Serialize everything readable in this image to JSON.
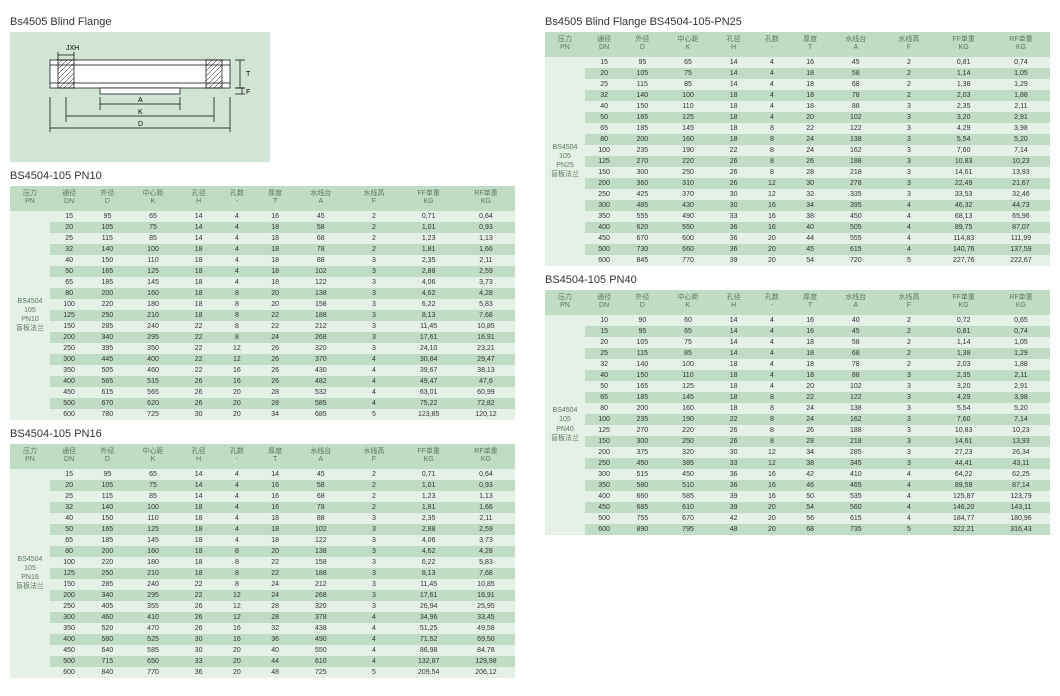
{
  "colors": {
    "header_bg": "#c0dcc4",
    "row_odd": "#e5f0e6",
    "row_even": "#c0dcc4",
    "diagram_bg": "#d2e5d5",
    "text": "#333333",
    "header_text": "#5a7a5f"
  },
  "left_title": "Bs4505 Blind Flange",
  "right_title": "Bs4505 Blind Flange BS4504-105-PN25",
  "columns": [
    {
      "h1": "压力",
      "h2": "PN"
    },
    {
      "h1": "通径",
      "h2": "DN"
    },
    {
      "h1": "外径",
      "h2": "D"
    },
    {
      "h1": "中心距",
      "h2": "K"
    },
    {
      "h1": "孔径",
      "h2": "H"
    },
    {
      "h1": "孔数",
      "h2": "-"
    },
    {
      "h1": "厚度",
      "h2": "T"
    },
    {
      "h1": "水线台",
      "h2": "A"
    },
    {
      "h1": "水线高",
      "h2": "F"
    },
    {
      "h1": "FF单重",
      "h2": "KG"
    },
    {
      "h1": "RF单重",
      "h2": "KG"
    }
  ],
  "tables": [
    {
      "title": "BS4504-105  PN10",
      "pn_label": "BS4504 105 PN10 盲板法兰",
      "rows": [
        [
          15,
          95,
          65,
          14,
          4,
          16,
          45,
          2,
          "0,71",
          "0,64"
        ],
        [
          20,
          105,
          75,
          14,
          4,
          18,
          58,
          2,
          "1,01",
          "0,93"
        ],
        [
          25,
          115,
          85,
          14,
          4,
          18,
          68,
          2,
          "1,23",
          "1,13"
        ],
        [
          32,
          140,
          100,
          18,
          4,
          18,
          78,
          2,
          "1,81",
          "1,66"
        ],
        [
          40,
          150,
          110,
          18,
          4,
          18,
          88,
          3,
          "2,35",
          "2,11"
        ],
        [
          50,
          165,
          125,
          18,
          4,
          18,
          102,
          3,
          "2,88",
          "2,59"
        ],
        [
          65,
          185,
          145,
          18,
          4,
          18,
          122,
          3,
          "4,06",
          "3,73"
        ],
        [
          80,
          200,
          160,
          18,
          8,
          20,
          138,
          3,
          "4,62",
          "4,28"
        ],
        [
          100,
          220,
          180,
          18,
          8,
          20,
          158,
          3,
          "6,22",
          "5,83"
        ],
        [
          125,
          250,
          210,
          18,
          8,
          22,
          188,
          3,
          "8,13",
          "7,68"
        ],
        [
          150,
          285,
          240,
          22,
          8,
          22,
          212,
          3,
          "11,45",
          "10,85"
        ],
        [
          200,
          340,
          295,
          22,
          8,
          24,
          268,
          3,
          "17,61",
          "16,91"
        ],
        [
          250,
          395,
          350,
          22,
          12,
          26,
          320,
          3,
          "24,10",
          "23,21"
        ],
        [
          300,
          445,
          400,
          22,
          12,
          26,
          370,
          4,
          "30,84",
          "29,47"
        ],
        [
          350,
          505,
          460,
          22,
          16,
          26,
          430,
          4,
          "39,67",
          "38,13"
        ],
        [
          400,
          565,
          515,
          26,
          16,
          26,
          482,
          4,
          "49,47",
          "47,6"
        ],
        [
          450,
          615,
          565,
          26,
          20,
          28,
          532,
          4,
          "63,01",
          "60,99"
        ],
        [
          500,
          670,
          620,
          26,
          20,
          28,
          585,
          4,
          "75,22",
          "72,82"
        ],
        [
          600,
          780,
          725,
          30,
          20,
          34,
          685,
          5,
          "123,85",
          "120,12"
        ]
      ]
    },
    {
      "title": "BS4504-105  PN16",
      "pn_label": "BS4504 105 PN16 盲板法兰",
      "rows": [
        [
          15,
          95,
          65,
          14,
          4,
          14,
          45,
          2,
          "0,71",
          "0,64"
        ],
        [
          20,
          105,
          75,
          14,
          4,
          16,
          58,
          2,
          "1,01",
          "0,93"
        ],
        [
          25,
          115,
          85,
          14,
          4,
          16,
          68,
          2,
          "1,23",
          "1,13"
        ],
        [
          32,
          140,
          100,
          18,
          4,
          16,
          78,
          2,
          "1,81",
          "1,66"
        ],
        [
          40,
          150,
          110,
          18,
          4,
          18,
          88,
          3,
          "2,35",
          "2,11"
        ],
        [
          50,
          165,
          125,
          18,
          4,
          18,
          102,
          3,
          "2,88",
          "2,59"
        ],
        [
          65,
          185,
          145,
          18,
          4,
          18,
          122,
          3,
          "4,06",
          "3,73"
        ],
        [
          80,
          200,
          160,
          18,
          8,
          20,
          138,
          3,
          "4,62",
          "4,28"
        ],
        [
          100,
          220,
          180,
          18,
          8,
          22,
          158,
          3,
          "6,22",
          "5,83"
        ],
        [
          125,
          250,
          210,
          18,
          8,
          22,
          188,
          3,
          "8,13",
          "7,68"
        ],
        [
          150,
          285,
          240,
          22,
          8,
          24,
          212,
          3,
          "11,45",
          "10,85"
        ],
        [
          200,
          340,
          295,
          22,
          12,
          24,
          268,
          3,
          "17,61",
          "16,91"
        ],
        [
          250,
          405,
          355,
          26,
          12,
          28,
          320,
          3,
          "26,94",
          "25,95"
        ],
        [
          300,
          460,
          410,
          26,
          12,
          28,
          378,
          4,
          "34,96",
          "33,45"
        ],
        [
          350,
          520,
          470,
          26,
          16,
          32,
          438,
          4,
          "51,25",
          "49,58"
        ],
        [
          400,
          580,
          525,
          30,
          16,
          36,
          490,
          4,
          "71,52",
          "69,50"
        ],
        [
          450,
          640,
          585,
          30,
          20,
          40,
          550,
          4,
          "86,98",
          "84,78"
        ],
        [
          500,
          715,
          650,
          33,
          20,
          44,
          610,
          4,
          "132,87",
          "129,98"
        ],
        [
          600,
          840,
          770,
          36,
          20,
          48,
          725,
          5,
          "209,54",
          "206,12"
        ]
      ]
    },
    {
      "title": "",
      "pn_label": "BS4504 105 PN25 盲板法兰",
      "rows": [
        [
          15,
          95,
          65,
          14,
          4,
          16,
          45,
          2,
          "0,81",
          "0,74"
        ],
        [
          20,
          105,
          75,
          14,
          4,
          18,
          58,
          2,
          "1,14",
          "1,05"
        ],
        [
          25,
          115,
          85,
          14,
          4,
          18,
          68,
          2,
          "1,38",
          "1,29"
        ],
        [
          32,
          140,
          100,
          18,
          4,
          18,
          78,
          2,
          "2,03",
          "1,88"
        ],
        [
          40,
          150,
          110,
          18,
          4,
          18,
          88,
          3,
          "2,35",
          "2,11"
        ],
        [
          50,
          165,
          125,
          18,
          4,
          20,
          102,
          3,
          "3,20",
          "2,91"
        ],
        [
          65,
          185,
          145,
          18,
          8,
          22,
          122,
          3,
          "4,29",
          "3,98"
        ],
        [
          80,
          200,
          160,
          18,
          8,
          24,
          138,
          3,
          "5,54",
          "5,20"
        ],
        [
          100,
          235,
          190,
          22,
          8,
          24,
          162,
          3,
          "7,60",
          "7,14"
        ],
        [
          125,
          270,
          220,
          26,
          8,
          26,
          188,
          3,
          "10,83",
          "10,23"
        ],
        [
          150,
          300,
          250,
          26,
          8,
          28,
          218,
          3,
          "14,61",
          "13,93"
        ],
        [
          200,
          360,
          310,
          26,
          12,
          30,
          278,
          3,
          "22,49",
          "21,67"
        ],
        [
          250,
          425,
          370,
          30,
          12,
          32,
          335,
          3,
          "33,53",
          "32,46"
        ],
        [
          300,
          485,
          430,
          30,
          16,
          34,
          395,
          4,
          "46,32",
          "44,73"
        ],
        [
          350,
          555,
          490,
          33,
          16,
          38,
          450,
          4,
          "68,13",
          "65,96"
        ],
        [
          400,
          620,
          550,
          36,
          16,
          40,
          505,
          4,
          "89,75",
          "87,07"
        ],
        [
          450,
          670,
          600,
          36,
          20,
          44,
          555,
          4,
          "114,83",
          "111,99"
        ],
        [
          500,
          730,
          660,
          36,
          20,
          45,
          615,
          4,
          "140,76",
          "137,59"
        ],
        [
          600,
          845,
          770,
          39,
          20,
          54,
          720,
          5,
          "227,76",
          "222,67"
        ]
      ]
    },
    {
      "title": "BS4504-105  PN40",
      "pn_label": "BS4504 105 PN40 盲板法兰",
      "rows": [
        [
          10,
          90,
          60,
          14,
          4,
          16,
          40,
          2,
          "0,72",
          "0,65"
        ],
        [
          15,
          95,
          65,
          14,
          4,
          16,
          45,
          2,
          "0,81",
          "0,74"
        ],
        [
          20,
          105,
          75,
          14,
          4,
          18,
          58,
          2,
          "1,14",
          "1,05"
        ],
        [
          25,
          115,
          85,
          14,
          4,
          18,
          68,
          2,
          "1,38",
          "1,29"
        ],
        [
          32,
          140,
          100,
          18,
          4,
          18,
          78,
          2,
          "2,03",
          "1,88"
        ],
        [
          40,
          150,
          110,
          18,
          4,
          18,
          88,
          3,
          "2,35",
          "2,11"
        ],
        [
          50,
          165,
          125,
          18,
          4,
          20,
          102,
          3,
          "3,20",
          "2,91"
        ],
        [
          65,
          185,
          145,
          18,
          8,
          22,
          122,
          3,
          "4,29",
          "3,98"
        ],
        [
          80,
          200,
          160,
          18,
          8,
          24,
          138,
          3,
          "5,54",
          "5,20"
        ],
        [
          100,
          235,
          190,
          22,
          8,
          24,
          162,
          3,
          "7,60",
          "7,14"
        ],
        [
          125,
          270,
          220,
          26,
          8,
          26,
          188,
          3,
          "10,83",
          "10,23"
        ],
        [
          150,
          300,
          250,
          26,
          8,
          28,
          218,
          3,
          "14,61",
          "13,93"
        ],
        [
          200,
          375,
          320,
          30,
          12,
          34,
          285,
          3,
          "27,23",
          "26,34"
        ],
        [
          250,
          450,
          385,
          33,
          12,
          38,
          345,
          3,
          "44,41",
          "43,11"
        ],
        [
          300,
          515,
          450,
          36,
          16,
          42,
          410,
          4,
          "64,22",
          "62,25"
        ],
        [
          350,
          580,
          510,
          36,
          16,
          46,
          465,
          4,
          "89,59",
          "87,14"
        ],
        [
          400,
          660,
          585,
          39,
          16,
          50,
          535,
          4,
          "125,87",
          "123,79"
        ],
        [
          450,
          685,
          610,
          39,
          20,
          54,
          560,
          4,
          "146,20",
          "143,11"
        ],
        [
          500,
          755,
          670,
          42,
          20,
          56,
          615,
          4,
          "184,77",
          "180,96"
        ],
        [
          600,
          890,
          795,
          48,
          20,
          68,
          735,
          5,
          "322,21",
          "316,43"
        ]
      ]
    }
  ]
}
